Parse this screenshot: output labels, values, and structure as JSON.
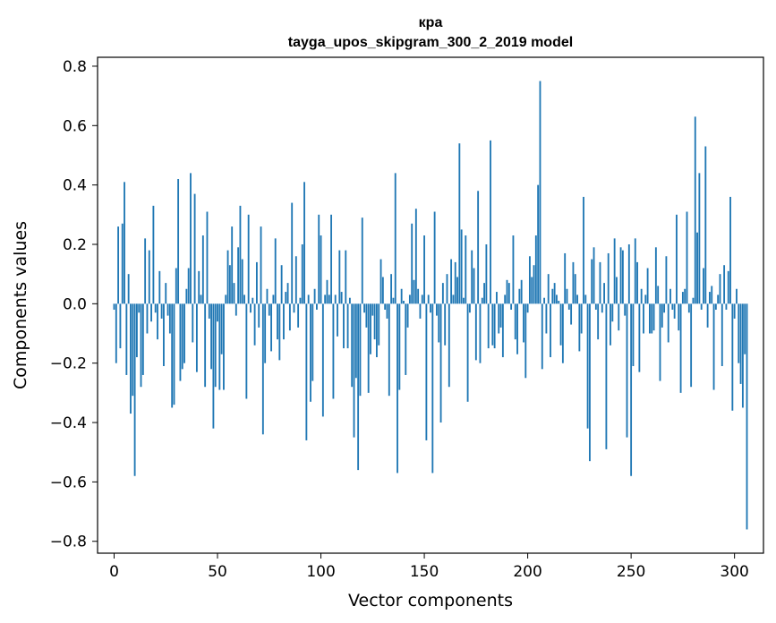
{
  "chart_data": {
    "type": "bar",
    "title": "кра",
    "subtitle": "tayga_upos_skipgram_300_2_2019 model",
    "xlabel": "Vector components",
    "ylabel": "Components values",
    "xlim": [
      -8,
      314
    ],
    "ylim": [
      -0.84,
      0.83
    ],
    "xticks": [
      0,
      50,
      100,
      150,
      200,
      250,
      300
    ],
    "xtick_labels": [
      "0",
      "50",
      "100",
      "150",
      "200",
      "250",
      "300"
    ],
    "yticks": [
      0.8,
      0.6,
      0.4,
      0.2,
      0.0,
      -0.2,
      -0.4,
      -0.6,
      -0.8
    ],
    "ytick_labels": [
      "0.8",
      "0.6",
      "0.4",
      "0.2",
      "0.0",
      "−0.2",
      "−0.4",
      "−0.6",
      "−0.8"
    ],
    "color": "#1f77b4",
    "values": [
      -0.02,
      -0.2,
      0.26,
      -0.15,
      0.27,
      0.41,
      -0.24,
      0.1,
      -0.37,
      -0.31,
      -0.58,
      -0.18,
      -0.03,
      -0.28,
      -0.24,
      0.22,
      -0.1,
      0.18,
      -0.06,
      0.33,
      -0.03,
      -0.12,
      0.11,
      -0.05,
      -0.21,
      0.07,
      -0.04,
      -0.1,
      -0.35,
      -0.34,
      0.12,
      0.42,
      -0.26,
      -0.22,
      -0.2,
      0.05,
      0.12,
      0.44,
      -0.13,
      0.37,
      -0.23,
      0.11,
      0.03,
      0.23,
      -0.28,
      0.31,
      -0.05,
      -0.22,
      -0.42,
      -0.28,
      -0.06,
      -0.29,
      -0.17,
      -0.29,
      0.03,
      0.18,
      0.13,
      0.26,
      0.07,
      -0.04,
      0.19,
      0.33,
      0.15,
      0.03,
      -0.32,
      0.3,
      -0.03,
      0.02,
      -0.14,
      0.14,
      -0.08,
      0.26,
      -0.44,
      -0.2,
      0.05,
      -0.04,
      -0.16,
      0.03,
      0.22,
      -0.12,
      -0.19,
      0.13,
      -0.12,
      0.04,
      0.07,
      -0.09,
      0.34,
      -0.03,
      0.16,
      -0.08,
      0.02,
      0.2,
      0.41,
      -0.46,
      0.03,
      -0.33,
      -0.26,
      0.05,
      -0.02,
      0.3,
      0.23,
      -0.38,
      0.03,
      0.08,
      0.03,
      0.3,
      -0.32,
      0.03,
      -0.11,
      0.18,
      0.04,
      -0.15,
      0.18,
      -0.15,
      0.02,
      -0.28,
      -0.45,
      -0.25,
      -0.56,
      -0.31,
      0.29,
      -0.03,
      -0.08,
      -0.3,
      -0.17,
      -0.04,
      -0.12,
      -0.18,
      -0.14,
      0.15,
      0.09,
      -0.02,
      -0.05,
      -0.31,
      0.1,
      0.02,
      0.44,
      -0.57,
      -0.29,
      0.05,
      0.01,
      -0.24,
      -0.08,
      0.03,
      0.27,
      0.08,
      0.32,
      0.05,
      -0.05,
      0.03,
      0.23,
      -0.46,
      0.03,
      -0.03,
      -0.57,
      0.31,
      -0.04,
      -0.13,
      -0.4,
      0.07,
      -0.14,
      0.1,
      -0.28,
      0.15,
      0.03,
      0.14,
      0.09,
      0.54,
      0.25,
      0.02,
      0.23,
      -0.33,
      -0.03,
      0.18,
      0.12,
      -0.19,
      0.38,
      -0.2,
      0.02,
      0.07,
      0.2,
      -0.15,
      0.55,
      -0.14,
      -0.15,
      0.04,
      -0.1,
      -0.08,
      -0.18,
      0.03,
      0.08,
      0.07,
      -0.02,
      0.23,
      -0.12,
      -0.17,
      0.05,
      0.08,
      -0.13,
      -0.25,
      -0.03,
      0.16,
      0.09,
      0.13,
      0.23,
      0.4,
      0.75,
      -0.22,
      0.02,
      -0.1,
      0.1,
      -0.18,
      0.05,
      0.07,
      0.03,
      0.01,
      -0.14,
      -0.2,
      0.17,
      0.05,
      -0.02,
      -0.07,
      0.14,
      0.1,
      0.03,
      -0.16,
      -0.1,
      0.36,
      0.03,
      -0.42,
      -0.53,
      0.15,
      0.19,
      -0.02,
      -0.12,
      0.14,
      -0.03,
      0.07,
      -0.49,
      0.17,
      -0.14,
      -0.06,
      0.22,
      0.09,
      -0.09,
      0.19,
      0.18,
      -0.04,
      -0.45,
      0.2,
      -0.58,
      -0.21,
      0.22,
      0.14,
      -0.23,
      0.05,
      -0.1,
      0.03,
      0.12,
      -0.1,
      -0.1,
      -0.09,
      0.19,
      0.06,
      -0.26,
      -0.08,
      -0.03,
      0.16,
      -0.13,
      0.05,
      -0.02,
      -0.05,
      0.3,
      -0.09,
      -0.3,
      0.04,
      0.05,
      0.31,
      -0.03,
      -0.28,
      0.02,
      0.63,
      0.24,
      0.44,
      -0.02,
      0.12,
      0.53,
      -0.08,
      0.04,
      0.06,
      -0.29,
      -0.02,
      0.03,
      0.1,
      -0.21,
      0.13,
      -0.02,
      0.11,
      0.36,
      -0.36,
      -0.05,
      0.05,
      -0.2,
      -0.27,
      -0.35,
      -0.17,
      -0.76
    ]
  }
}
